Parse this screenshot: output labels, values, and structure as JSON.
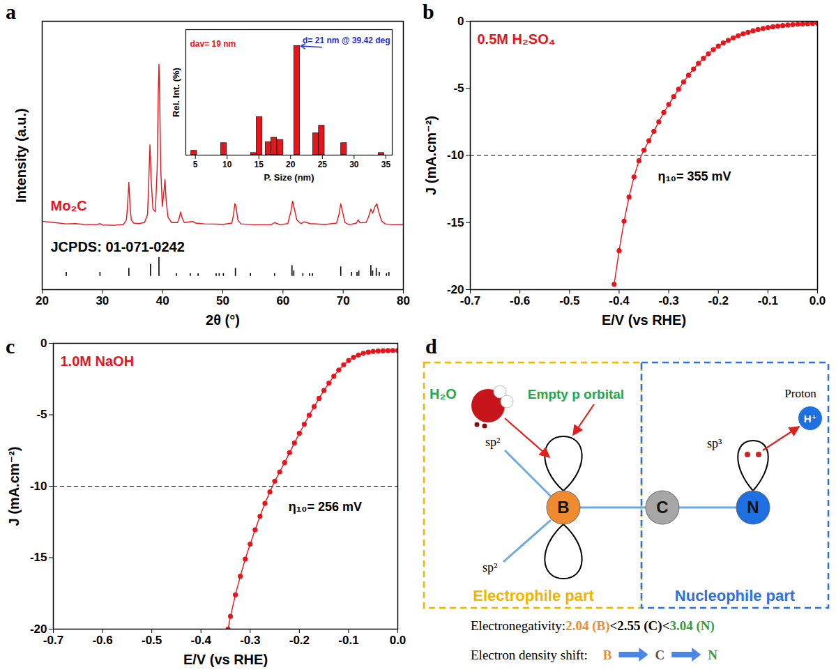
{
  "chart_data": [
    {
      "type": "line",
      "title": "a",
      "x_label": "2θ (°)",
      "y_label": "Intensity (a.u.)",
      "xlim": [
        20,
        80
      ],
      "xticks": [
        20,
        30,
        40,
        50,
        60,
        70,
        80
      ],
      "ylim": [
        0,
        100
      ],
      "yticks": [],
      "tick_labels": "x",
      "series": [
        {
          "name": "Mo₂C",
          "type": "line",
          "color": "#e8141b",
          "x": [
            20,
            22,
            24,
            25.5,
            27,
            29,
            29.6,
            30,
            32,
            33.5,
            34,
            34.2,
            34.4,
            34.6,
            34.8,
            35.2,
            36,
            37,
            37.5,
            37.7,
            37.9,
            38.1,
            38.4,
            38.8,
            39.1,
            39.3,
            39.4,
            39.5,
            39.7,
            39.95,
            40.2,
            40.4,
            40.6,
            40.9,
            41.5,
            42.5,
            42.8,
            43,
            43.2,
            43.6,
            45,
            45.5,
            47,
            49,
            50,
            51.5,
            51.8,
            52,
            52.2,
            52.5,
            53,
            55,
            58,
            58.6,
            59.5,
            60.8,
            61.3,
            61.6,
            61.9,
            62.3,
            63,
            63.5,
            64.5,
            67,
            68.9,
            69.3,
            69.6,
            69.9,
            70.3,
            71,
            72.2,
            72.5,
            72.8,
            73.8,
            74.2,
            74.6,
            74.9,
            75.3,
            75.6,
            75.9,
            76.4,
            77,
            78,
            80
          ],
          "values": [
            25.5,
            25,
            24.5,
            24.6,
            24.3,
            24.2,
            24.6,
            24.1,
            24,
            24.3,
            26,
            32,
            40,
            31,
            26,
            24.8,
            24.6,
            25,
            28,
            40,
            54,
            41,
            30,
            29,
            45,
            75,
            84,
            74,
            45,
            31,
            36,
            41,
            33,
            27,
            25,
            25,
            27,
            29,
            27,
            25,
            25.4,
            24.8,
            24.5,
            24.4,
            24.3,
            24.8,
            28,
            32,
            31,
            26,
            24.5,
            24.2,
            24.2,
            25,
            24.2,
            24.6,
            29,
            33,
            30,
            26,
            24.6,
            25.3,
            24.6,
            24.3,
            24.8,
            28,
            32,
            29,
            25,
            24.2,
            24.8,
            26,
            24.9,
            25,
            27,
            30,
            28.5,
            31,
            32,
            29,
            25.5,
            24.5,
            24.2,
            24.3
          ]
        },
        {
          "name": "JCPDS: 01-071-0242",
          "type": "stem",
          "color": "#000000",
          "base": 5,
          "x": [
            24.0,
            29.6,
            34.4,
            38.0,
            39.4,
            42.3,
            44.6,
            45.9,
            48.9,
            49.4,
            50.1,
            52.1,
            54.6,
            58.6,
            61.5,
            61.8,
            63.3,
            64.4,
            64.9,
            69.6,
            71.4,
            72.3,
            72.6,
            74.6,
            74.9,
            75.5,
            76.0,
            77.2,
            77.6
          ],
          "values": [
            6.5,
            6.5,
            8,
            9.5,
            12,
            6,
            6,
            6,
            6,
            6,
            6,
            8,
            6,
            6,
            9,
            7,
            6,
            6,
            6,
            8.5,
            6.5,
            6.5,
            7,
            9,
            7,
            8,
            6.5,
            6,
            6.5
          ]
        }
      ]
    },
    {
      "type": "bar",
      "x_label": "P. Size (nm)",
      "y_label": "Rel. Int. (%)",
      "xlim": [
        3.5,
        36
      ],
      "xticks": [
        5,
        10,
        15,
        20,
        25,
        30,
        35
      ],
      "ylim": [
        0,
        115
      ],
      "yticks": [],
      "tick_labels": "x",
      "color": "#e8141b",
      "x": [
        4.8,
        9.5,
        14.2,
        15.1,
        16.5,
        17.4,
        18.4,
        21,
        24,
        24.9,
        28.4,
        34.3
      ],
      "values": [
        4,
        11,
        2,
        35,
        12,
        16,
        14,
        100,
        20,
        27,
        11,
        2
      ],
      "annotations": [
        {
          "text": "dav= 19 nm",
          "color": "#e8141b"
        },
        {
          "text": "d= 21 nm @ 39.42 deg",
          "color": "#1f2fd6"
        }
      ]
    },
    {
      "type": "line",
      "title": "b",
      "x_label": "E/V (vs RHE)",
      "y_label": "J (mA.cm⁻²)",
      "xlim": [
        -0.7,
        0
      ],
      "xticks": [
        -0.7,
        -0.6,
        -0.5,
        -0.4,
        -0.3,
        -0.2,
        -0.1,
        {
          "value": 0,
          "label": "0.0"
        }
      ],
      "ylim": [
        -20,
        0
      ],
      "yticks": [
        0,
        -5,
        -10,
        -15,
        -20
      ],
      "hline": {
        "value": -10,
        "line_style": "dashed"
      },
      "annotations": [
        {
          "text": "η₁₀= 355 mV"
        }
      ],
      "series": [
        {
          "name": "0.5M H₂SO₄",
          "type": "line",
          "color": "#e8141b",
          "marker": "circle",
          "x": [
            0,
            -0.01,
            -0.02,
            -0.03,
            -0.04,
            -0.05,
            -0.06,
            -0.07,
            -0.08,
            -0.09,
            -0.1,
            -0.11,
            -0.12,
            -0.13,
            -0.14,
            -0.15,
            -0.16,
            -0.17,
            -0.18,
            -0.19,
            -0.2,
            -0.21,
            -0.22,
            -0.23,
            -0.24,
            -0.25,
            -0.26,
            -0.27,
            -0.28,
            -0.29,
            -0.3,
            -0.31,
            -0.32,
            -0.33,
            -0.34,
            -0.35,
            -0.36,
            -0.37,
            -0.38,
            -0.39,
            -0.4,
            -0.41
          ],
          "values": [
            -0.15,
            -0.16,
            -0.18,
            -0.2,
            -0.22,
            -0.25,
            -0.28,
            -0.32,
            -0.36,
            -0.41,
            -0.47,
            -0.54,
            -0.62,
            -0.71,
            -0.82,
            -0.94,
            -1.08,
            -1.24,
            -1.42,
            -1.62,
            -1.85,
            -2.12,
            -2.42,
            -2.76,
            -3.14,
            -3.56,
            -4.02,
            -4.52,
            -5.06,
            -5.62,
            -6.2,
            -6.8,
            -7.5,
            -8.2,
            -8.9,
            -9.6,
            -10.4,
            -11.6,
            -13.1,
            -14.9,
            -17.1,
            -19.6
          ]
        }
      ]
    },
    {
      "type": "line",
      "title": "c",
      "x_label": "E/V (vs RHE)",
      "y_label": "J (mA.cm⁻²)",
      "xlim": [
        -0.7,
        0
      ],
      "xticks": [
        -0.7,
        -0.6,
        -0.5,
        -0.4,
        -0.3,
        -0.2,
        -0.1,
        {
          "value": 0,
          "label": "0.0"
        }
      ],
      "ylim": [
        -20,
        0
      ],
      "yticks": [
        0,
        -5,
        -10,
        -15,
        -20
      ],
      "hline": {
        "value": -10,
        "line_style": "dashed"
      },
      "annotations": [
        {
          "text": "η₁₀= 256 mV"
        }
      ],
      "series": [
        {
          "name": "1.0M NaOH",
          "type": "line",
          "color": "#e8141b",
          "marker": "circle",
          "x": [
            0,
            -0.01,
            -0.02,
            -0.03,
            -0.04,
            -0.05,
            -0.06,
            -0.07,
            -0.08,
            -0.09,
            -0.1,
            -0.11,
            -0.12,
            -0.13,
            -0.14,
            -0.15,
            -0.16,
            -0.17,
            -0.18,
            -0.19,
            -0.2,
            -0.21,
            -0.22,
            -0.23,
            -0.24,
            -0.25,
            -0.26,
            -0.27,
            -0.28,
            -0.29,
            -0.3,
            -0.31,
            -0.32,
            -0.33,
            -0.34,
            -0.345
          ],
          "values": [
            -0.5,
            -0.5,
            -0.51,
            -0.52,
            -0.54,
            -0.57,
            -0.62,
            -0.7,
            -0.82,
            -0.98,
            -1.2,
            -1.5,
            -1.87,
            -2.3,
            -2.78,
            -3.3,
            -3.85,
            -4.43,
            -5.03,
            -5.66,
            -6.3,
            -6.97,
            -7.65,
            -8.35,
            -9.0,
            -9.65,
            -10.4,
            -11.2,
            -12.1,
            -13.05,
            -14.05,
            -15.1,
            -16.3,
            -17.6,
            -19.1,
            -20
          ]
        }
      ]
    }
  ],
  "diagram": {
    "title": "d",
    "regions": [
      {
        "label": "Electrophile part",
        "color": "#f2b400"
      },
      {
        "label": "Nucleophile part",
        "color": "#2f6fe0"
      }
    ],
    "atoms": [
      {
        "label": "B",
        "color": "#f08a30"
      },
      {
        "label": "C",
        "color": "#a6a6a6"
      },
      {
        "label": "N",
        "color": "#1e6fe0"
      }
    ],
    "water": {
      "label": "H₂O",
      "color": "#22a84a"
    },
    "orbital": {
      "label": "Empty p orbital",
      "color": "#22a84a"
    },
    "hybrids": {
      "B": [
        "sp²",
        "sp²"
      ],
      "N": "sp³"
    },
    "proton": {
      "label": "Proton",
      "symbol": "H⁺",
      "color": "#1e6fe0"
    },
    "electronegativity": {
      "label": "Electronegativity:",
      "parts": [
        {
          "text": "2.04 (B)",
          "color": "#f08a30"
        },
        {
          "text": "<2.55 (C)<",
          "color": "#000000"
        },
        {
          "text": "3.04 (N)",
          "color": "#3a9a3a"
        }
      ]
    },
    "electron_shift": {
      "label": "Electron density shift:",
      "sequence": [
        {
          "text": "B",
          "color": "#f08a30"
        },
        {
          "text": "C",
          "color": "#555555"
        },
        {
          "text": "N",
          "color": "#3a9a3a"
        }
      ],
      "arrow_color": "#4a86e8"
    }
  }
}
